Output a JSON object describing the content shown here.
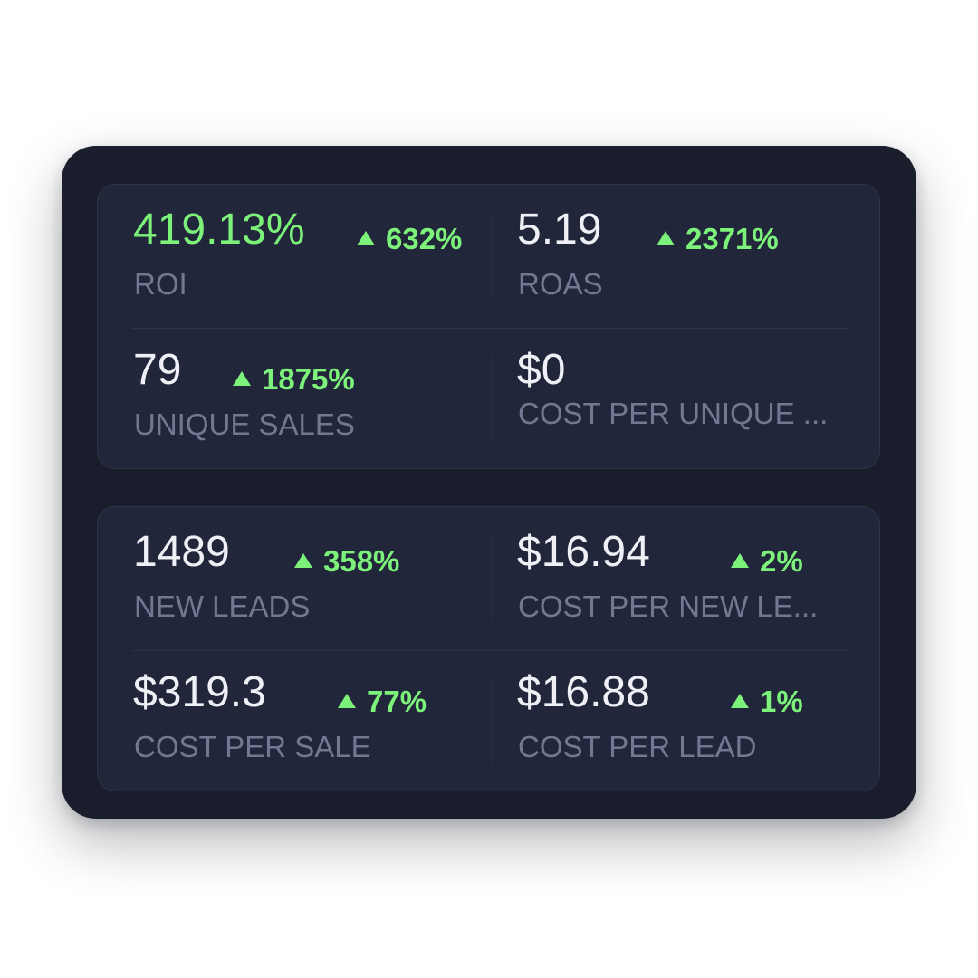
{
  "metrics": [
    {
      "value": "419.13%",
      "change": "632%",
      "label": "ROI"
    },
    {
      "value": "5.19",
      "change": "2371%",
      "label": "ROAS"
    },
    {
      "value": "79",
      "change": "1875%",
      "label": "UNIQUE SALES"
    },
    {
      "value": "$0",
      "change": null,
      "label": "COST PER UNIQUE ..."
    },
    {
      "value": "1489",
      "change": "358%",
      "label": "NEW LEADS"
    },
    {
      "value": "$16.94",
      "change": "2%",
      "label": "COST PER NEW LE..."
    },
    {
      "value": "$319.3",
      "change": "77%",
      "label": "COST PER SALE"
    },
    {
      "value": "$16.88",
      "change": "1%",
      "label": "COST PER LEAD"
    }
  ],
  "colors": {
    "background": "#ffffff",
    "panel": "#1a1d2b",
    "card": "#22263a",
    "positive": "#7cf27a",
    "value_text": "#eef0f6",
    "label_text": "#717891"
  },
  "icons": {
    "change_indicator": "triangle-up-icon"
  }
}
